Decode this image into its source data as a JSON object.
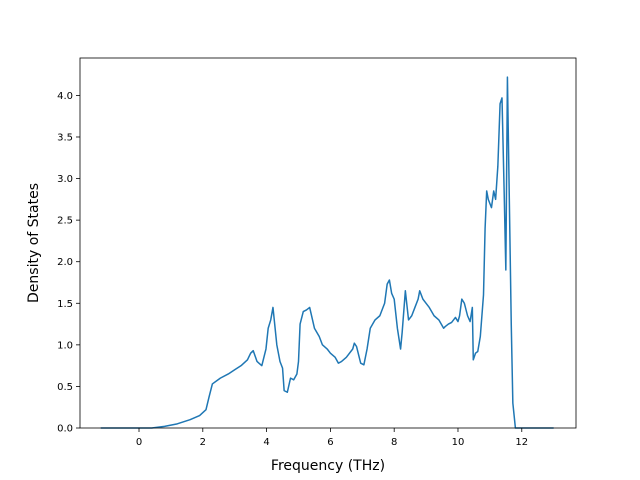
{
  "chart_data": {
    "type": "line",
    "title": "",
    "xlabel": "Frequency (THz)",
    "ylabel": "Density of States",
    "xlim": [
      -1.85,
      13.7
    ],
    "ylim": [
      0.0,
      4.45
    ],
    "xticks": [
      0,
      2,
      4,
      6,
      8,
      10,
      12
    ],
    "yticks": [
      0.0,
      0.5,
      1.0,
      1.5,
      2.0,
      2.5,
      3.0,
      3.5,
      4.0
    ],
    "xtick_labels": [
      "0",
      "2",
      "4",
      "6",
      "8",
      "10",
      "12"
    ],
    "ytick_labels": [
      "0.0",
      "0.5",
      "1.0",
      "1.5",
      "2.0",
      "2.5",
      "3.0",
      "3.5",
      "4.0"
    ],
    "grid": false,
    "legend": "none",
    "series": [
      {
        "color": "#1f77b4",
        "x": [
          -1.2,
          -0.8,
          -0.4,
          0.0,
          0.4,
          0.8,
          1.2,
          1.6,
          1.9,
          2.1,
          2.2,
          2.3,
          2.55,
          2.8,
          3.0,
          3.2,
          3.4,
          3.5,
          3.58,
          3.7,
          3.76,
          3.85,
          3.98,
          4.05,
          4.13,
          4.2,
          4.32,
          4.42,
          4.5,
          4.55,
          4.65,
          4.75,
          4.85,
          4.95,
          5.0,
          5.05,
          5.15,
          5.25,
          5.35,
          5.5,
          5.65,
          5.75,
          5.9,
          6.0,
          6.15,
          6.25,
          6.35,
          6.5,
          6.7,
          6.75,
          6.82,
          6.95,
          7.05,
          7.15,
          7.25,
          7.4,
          7.55,
          7.7,
          7.78,
          7.85,
          7.92,
          8.0,
          8.1,
          8.2,
          8.25,
          8.35,
          8.45,
          8.55,
          8.65,
          8.75,
          8.8,
          8.9,
          9.0,
          9.1,
          9.25,
          9.4,
          9.55,
          9.6,
          9.7,
          9.8,
          9.92,
          10.0,
          10.05,
          10.12,
          10.2,
          10.3,
          10.38,
          10.45,
          10.48,
          10.55,
          10.62,
          10.7,
          10.8,
          10.85,
          10.9,
          10.95,
          11.0,
          11.05,
          11.12,
          11.18,
          11.25,
          11.32,
          11.38,
          11.45,
          11.5,
          11.55,
          11.62,
          11.67,
          11.72,
          11.8,
          11.9,
          12.0,
          13.0
        ],
        "y": [
          0.0,
          0.0,
          0.0,
          0.0,
          0.0,
          0.02,
          0.05,
          0.1,
          0.15,
          0.22,
          0.38,
          0.53,
          0.6,
          0.65,
          0.7,
          0.75,
          0.82,
          0.9,
          0.93,
          0.8,
          0.78,
          0.75,
          0.95,
          1.2,
          1.3,
          1.45,
          1.0,
          0.8,
          0.72,
          0.45,
          0.43,
          0.6,
          0.58,
          0.65,
          0.8,
          1.25,
          1.4,
          1.42,
          1.45,
          1.2,
          1.1,
          1.0,
          0.95,
          0.9,
          0.85,
          0.78,
          0.8,
          0.85,
          0.95,
          1.02,
          0.98,
          0.78,
          0.76,
          0.95,
          1.2,
          1.3,
          1.35,
          1.5,
          1.73,
          1.78,
          1.62,
          1.55,
          1.2,
          0.95,
          1.15,
          1.65,
          1.3,
          1.35,
          1.45,
          1.55,
          1.65,
          1.55,
          1.5,
          1.45,
          1.35,
          1.3,
          1.2,
          1.22,
          1.25,
          1.27,
          1.33,
          1.28,
          1.35,
          1.55,
          1.5,
          1.35,
          1.28,
          1.45,
          0.82,
          0.9,
          0.92,
          1.1,
          1.6,
          2.4,
          2.85,
          2.75,
          2.7,
          2.65,
          2.85,
          2.75,
          3.15,
          3.9,
          3.97,
          2.8,
          1.9,
          4.22,
          2.5,
          1.25,
          0.3,
          0.0,
          0.0,
          0.0,
          0.0
        ]
      }
    ]
  }
}
